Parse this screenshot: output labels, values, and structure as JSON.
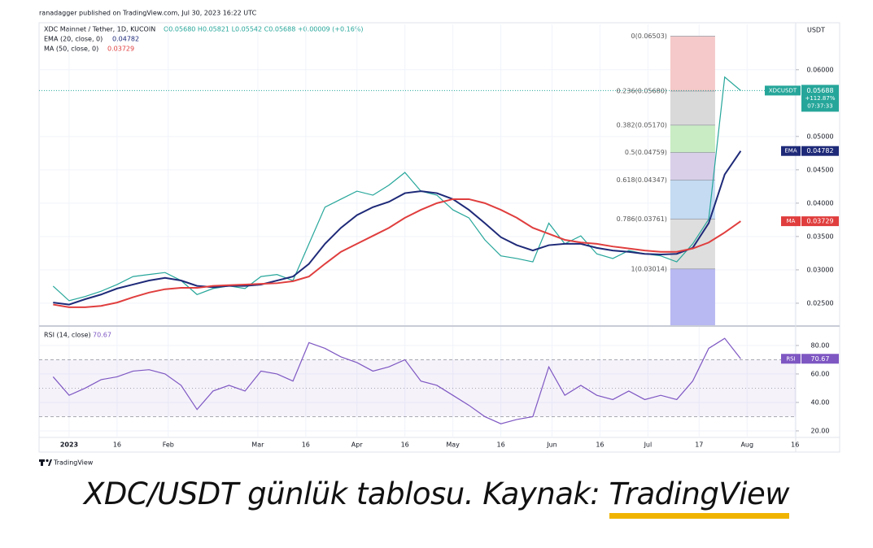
{
  "header": "ranadagger published on TradingView.com, Jul 30, 2023 16:22 UTC",
  "chart_data": [
    {
      "type": "line",
      "title": "XDC Mainnet / Tether, 1D, KUCOIN",
      "ohlc": "O0.05680 H0.05821 L0.05542 C0.05688 +0.00009 (+0.16%)",
      "unit": "USDT",
      "x": [
        -5,
        0,
        5,
        10,
        15,
        20,
        25,
        30,
        35,
        40,
        45,
        50,
        55,
        60,
        65,
        70,
        75,
        80,
        85,
        90,
        95,
        100,
        105,
        110,
        115,
        120,
        125,
        130,
        135,
        140,
        145,
        150,
        155,
        160,
        165,
        170,
        175,
        180,
        185,
        190,
        195,
        200,
        205,
        210
      ],
      "xlim": [
        -9.4,
        227.2
      ],
      "xticks": [
        {
          "value": 0,
          "label": "2023"
        },
        {
          "value": 15,
          "label": "16"
        },
        {
          "value": 31,
          "label": "Feb"
        },
        {
          "value": 59,
          "label": "Mar"
        },
        {
          "value": 74,
          "label": "16"
        },
        {
          "value": 90,
          "label": "Apr"
        },
        {
          "value": 105,
          "label": "16"
        },
        {
          "value": 120,
          "label": "May"
        },
        {
          "value": 135,
          "label": "16"
        },
        {
          "value": 151,
          "label": "Jun"
        },
        {
          "value": 166,
          "label": "16"
        },
        {
          "value": 181,
          "label": "Jul"
        },
        {
          "value": 197,
          "label": "17"
        },
        {
          "value": 212,
          "label": "Aug"
        },
        {
          "value": 227,
          "label": "16"
        }
      ],
      "ylim": [
        0.0217,
        0.0668
      ],
      "yticks": [
        {
          "value": 0.025,
          "label": "0.02500"
        },
        {
          "value": 0.03,
          "label": "0.03000"
        },
        {
          "value": 0.035,
          "label": "0.03500"
        },
        {
          "value": 0.04,
          "label": "0.04000"
        },
        {
          "value": 0.045,
          "label": "0.04500"
        },
        {
          "value": 0.05,
          "label": "0.05000"
        },
        {
          "value": 0.06,
          "label": "0.06000"
        }
      ],
      "grid": true,
      "series": [
        {
          "name": "XDCUSDT",
          "color": "#26a69a",
          "tag": {
            "change": "+112.87%",
            "countdown": "07:37:33"
          },
          "values": [
            0.02756,
            0.02537,
            0.026,
            0.0268,
            0.0278,
            0.029,
            0.0293,
            0.0296,
            0.0284,
            0.0263,
            0.0272,
            0.0276,
            0.0272,
            0.029,
            0.0293,
            0.0284,
            0.0339,
            0.0394,
            0.0406,
            0.0418,
            0.0412,
            0.0427,
            0.0446,
            0.0418,
            0.0412,
            0.039,
            0.0378,
            0.0345,
            0.0321,
            0.0317,
            0.0312,
            0.037,
            0.0339,
            0.0351,
            0.0324,
            0.0317,
            0.0329,
            0.0324,
            0.0321,
            0.0312,
            0.0339,
            0.0376,
            0.0589,
            0.05688
          ]
        },
        {
          "name": "EMA (20, close, 0)",
          "tag_name": "EMA",
          "color": "#1e2a78",
          "values": [
            0.0251,
            0.0248,
            0.0256,
            0.0263,
            0.0272,
            0.0278,
            0.0284,
            0.0288,
            0.0284,
            0.0276,
            0.0274,
            0.0276,
            0.0276,
            0.0278,
            0.0284,
            0.029,
            0.0309,
            0.0339,
            0.0363,
            0.0382,
            0.0394,
            0.0402,
            0.0415,
            0.0418,
            0.0415,
            0.0406,
            0.039,
            0.037,
            0.0349,
            0.0337,
            0.0329,
            0.0337,
            0.0339,
            0.0339,
            0.0333,
            0.0329,
            0.0327,
            0.0324,
            0.0323,
            0.0324,
            0.0333,
            0.037,
            0.0443,
            0.04782
          ]
        },
        {
          "name": "MA (50, close, 0)",
          "tag_name": "MA",
          "color": "#e03e3e",
          "values": [
            0.0248,
            0.0244,
            0.0244,
            0.0246,
            0.0251,
            0.0259,
            0.0266,
            0.0271,
            0.0273,
            0.0273,
            0.0276,
            0.0277,
            0.0278,
            0.0279,
            0.028,
            0.0283,
            0.029,
            0.0309,
            0.0327,
            0.0339,
            0.0351,
            0.0363,
            0.0378,
            0.039,
            0.04,
            0.0406,
            0.0406,
            0.04,
            0.039,
            0.0378,
            0.0363,
            0.0354,
            0.0345,
            0.0341,
            0.0339,
            0.0335,
            0.0332,
            0.0329,
            0.0327,
            0.0327,
            0.0332,
            0.0341,
            0.0356,
            0.03729
          ]
        }
      ],
      "fib": {
        "x": [
          188,
          202
        ],
        "prices": [
          0.06503,
          0.0568,
          0.0517,
          0.04759,
          0.04347,
          0.03761,
          0.03014
        ],
        "labels": [
          "0(0.06503)",
          "0.236(0.05680)",
          "0.382(0.05170)",
          "0.5(0.04759)",
          "0.618(0.04347)",
          "0.786(0.03761)",
          "1(0.03014)"
        ],
        "colors": [
          "#f5c9c9",
          "#d9d9d9",
          "#c9ecc4",
          "#d9cfe9",
          "#c4dbf2",
          "#dedede"
        ],
        "target_color": "#b8b8f2"
      }
    },
    {
      "type": "line",
      "title": "RSI (14, close)",
      "ylim": [
        15.4,
        93.1
      ],
      "yticks": [
        {
          "value": 20,
          "label": "20.00"
        },
        {
          "value": 40,
          "label": "40.00"
        },
        {
          "value": 60,
          "label": "60.00"
        },
        {
          "value": 80,
          "label": "80.00"
        }
      ],
      "grid": true,
      "bands": {
        "upper": 70,
        "middle": 50,
        "lower": 30
      },
      "series": [
        {
          "name": "RSI",
          "color": "#7e57c2",
          "values": [
            58,
            45,
            50,
            56,
            58,
            62,
            63,
            60,
            52,
            35,
            48,
            52,
            48,
            62,
            60,
            55,
            82,
            78,
            72,
            68,
            62,
            65,
            70,
            55,
            52,
            45,
            38,
            30,
            25,
            28,
            30,
            65,
            45,
            52,
            45,
            42,
            48,
            42,
            45,
            42,
            55,
            78,
            85,
            70.67
          ]
        }
      ]
    }
  ],
  "logo": "TradingView",
  "caption": {
    "text": "XDC/USDT günlük tablosu. Kaynak: ",
    "link": "TradingView"
  }
}
